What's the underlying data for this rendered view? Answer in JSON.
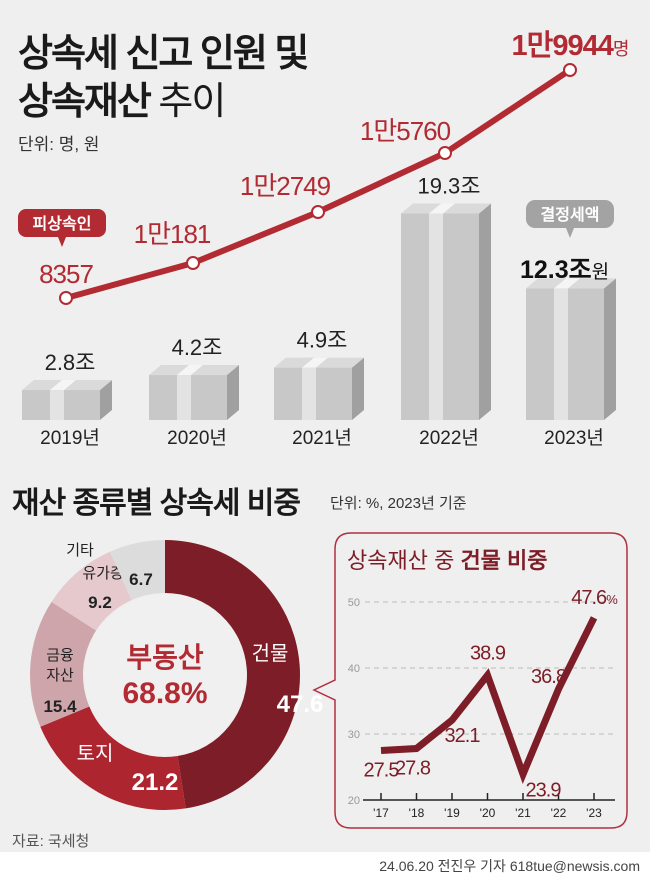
{
  "header": {
    "title_line1": "상속세 신고 인원 및",
    "title_line2_bold": "상속재산",
    "title_line2_rest": "추이",
    "unit": "단위: 명, 원"
  },
  "chart_data": [
    {
      "type": "line",
      "name_tag": "피상속인",
      "categories": [
        "2019년",
        "2020년",
        "2021년",
        "2022년",
        "2023년"
      ],
      "values": [
        8357,
        10181,
        12749,
        15760,
        19944
      ],
      "labels": [
        "8357",
        "1만181",
        "1만2749",
        "1만5760",
        "1만9944"
      ],
      "last_unit": "명",
      "color": "#b22a32"
    },
    {
      "type": "bar",
      "categories": [
        "2019년",
        "2020년",
        "2021년",
        "2022년",
        "2023년"
      ],
      "values": [
        2.8,
        4.2,
        4.9,
        19.3,
        12.3
      ],
      "labels": [
        "2.8조",
        "4.2조",
        "4.9조",
        "19.3조",
        "12.3조"
      ],
      "last_unit": "원",
      "callout": "결정세액"
    },
    {
      "type": "pie",
      "title": "재산 종류별 상속세 비중",
      "unit": "단위: %, 2023년 기준",
      "center_label": "부동산",
      "center_value": "68.8%",
      "slices": [
        {
          "name": "건물",
          "value": 47.6,
          "color": "#7d1d27"
        },
        {
          "name": "토지",
          "value": 21.2,
          "color": "#ad252f"
        },
        {
          "name": "금융 자산",
          "value": 15.4,
          "color": "#cda5ab"
        },
        {
          "name": "유가증권",
          "value": 9.2,
          "color": "#e6c9cd"
        },
        {
          "name": "기타",
          "value": 6.7,
          "color": "#dcdcdc"
        }
      ]
    },
    {
      "type": "line",
      "title_normal": "상속재산 중",
      "title_bold": "건물 비중",
      "categories": [
        "'17",
        "'18",
        "'19",
        "'20",
        "'21",
        "'22",
        "'23"
      ],
      "values": [
        27.5,
        27.8,
        32.1,
        38.9,
        23.9,
        36.8,
        47.6
      ],
      "last_unit": "%",
      "yticks": [
        20,
        30,
        40,
        50
      ],
      "ylim": [
        20,
        50
      ],
      "grid": true,
      "color": "#7d1d27"
    }
  ],
  "footer": {
    "source": "자료: 국세청",
    "credit": "24.06.20 전진우 기자 618tue@newsis.com"
  }
}
